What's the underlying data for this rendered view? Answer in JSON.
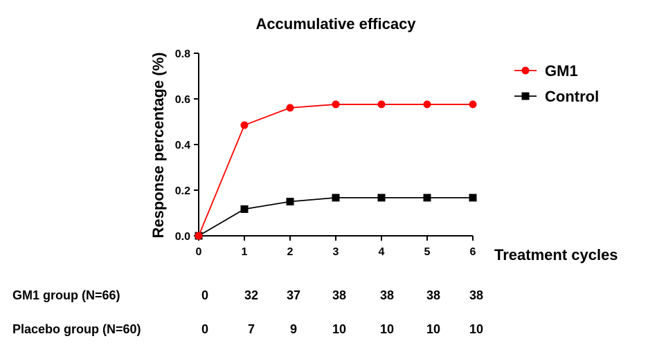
{
  "chart_data": {
    "type": "line",
    "title": "Accumulative efficacy",
    "xlabel": "Treatment cycles",
    "ylabel": "Response percentage (%)",
    "x": [
      0,
      1,
      2,
      3,
      4,
      5,
      6
    ],
    "xlim": [
      0,
      6
    ],
    "ylim": [
      0,
      0.8
    ],
    "yticks": [
      "0.0",
      "0.2",
      "0.4",
      "0.6",
      "0.8"
    ],
    "xticks": [
      "0",
      "1",
      "2",
      "3",
      "4",
      "5",
      "6"
    ],
    "grid": false,
    "legend_position": "top-right",
    "series": [
      {
        "name": "GM1",
        "color": "#ff0000",
        "marker": "circle",
        "values": [
          0,
          0.485,
          0.561,
          0.576,
          0.576,
          0.576,
          0.576
        ]
      },
      {
        "name": "Control",
        "color": "#000000",
        "marker": "square",
        "values": [
          0,
          0.117,
          0.15,
          0.167,
          0.167,
          0.167,
          0.167
        ]
      }
    ]
  },
  "table": {
    "rows": [
      {
        "label": "GM1 group (N=66)",
        "values": [
          "0",
          "32",
          "37",
          "38",
          "38",
          "38",
          "38"
        ]
      },
      {
        "label": "Placebo group (N=60)",
        "values": [
          "0",
          "7",
          "9",
          "10",
          "10",
          "10",
          "10"
        ]
      }
    ]
  }
}
